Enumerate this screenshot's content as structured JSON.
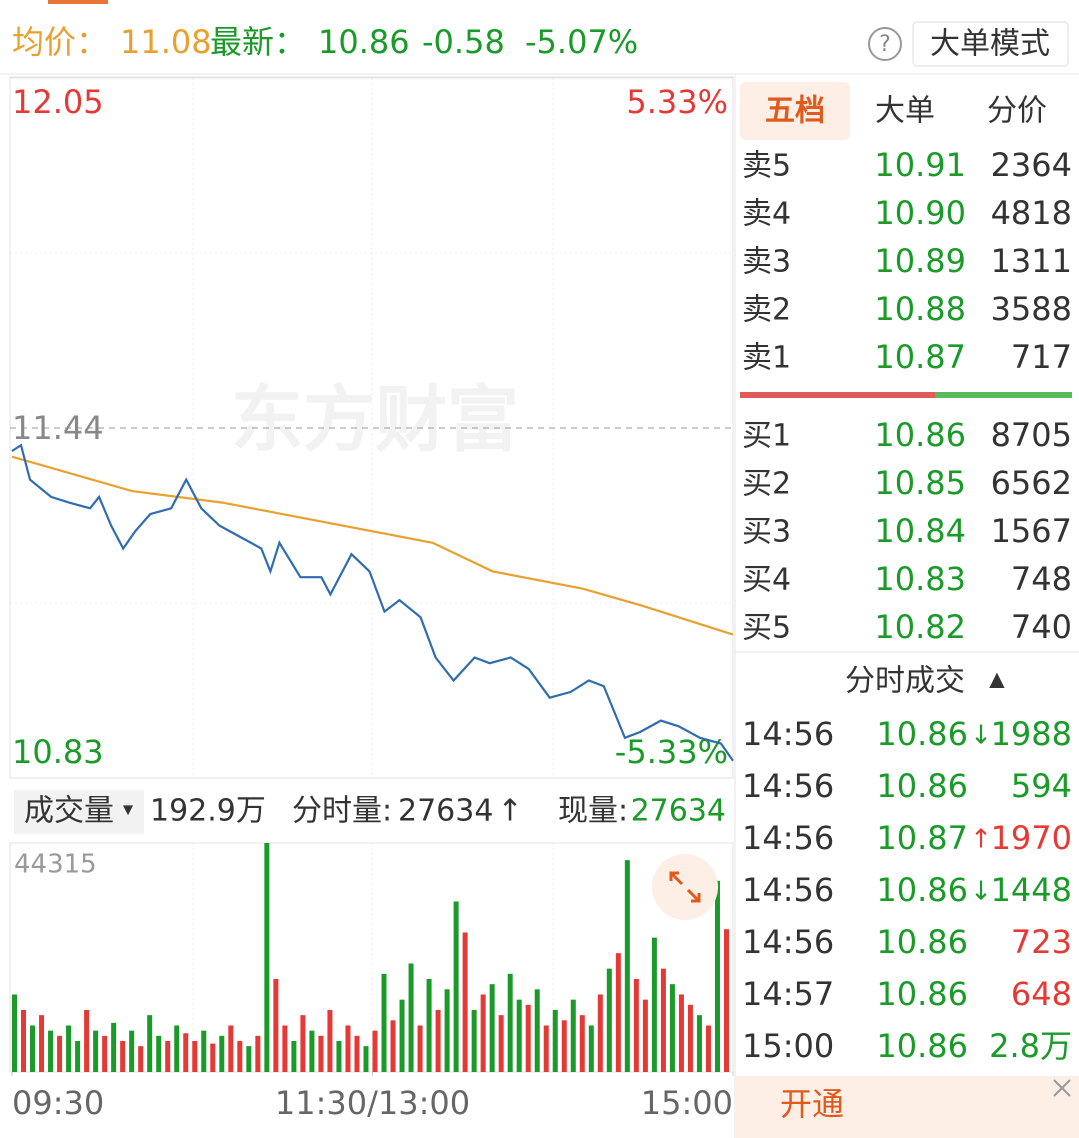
{
  "header": {
    "avg_label": "均价：",
    "avg": "11.08",
    "last_label": "最新：",
    "last": "10.86",
    "change": "-0.58",
    "change_pct": "-5.07%",
    "help": "?",
    "mode_button": "大单模式"
  },
  "tabs": [
    "五档",
    "大单",
    "分价"
  ],
  "order_book": {
    "sell": [
      [
        "卖5",
        "10.91",
        "2364"
      ],
      [
        "卖4",
        "10.90",
        "4818"
      ],
      [
        "卖3",
        "10.89",
        "1311"
      ],
      [
        "卖2",
        "10.88",
        "3588"
      ],
      [
        "卖1",
        "10.87",
        "717"
      ]
    ],
    "buy": [
      [
        "买1",
        "10.86",
        "8705"
      ],
      [
        "买2",
        "10.85",
        "6562"
      ],
      [
        "买3",
        "10.84",
        "1567"
      ],
      [
        "买4",
        "10.83",
        "748"
      ],
      [
        "买5",
        "10.82",
        "740"
      ]
    ]
  },
  "trades_title": "分时成交",
  "trades_sort": "▲",
  "trades": [
    {
      "time": "14:56",
      "price": "10.86",
      "arrow": "↓",
      "volume": "1988",
      "color": "#1a9a28"
    },
    {
      "time": "14:56",
      "price": "10.86",
      "volume": "594",
      "color": "#1a9a28"
    },
    {
      "time": "14:56",
      "price": "10.87",
      "arrow": "↑",
      "volume": "1970",
      "color": "#e53935"
    },
    {
      "time": "14:56",
      "price": "10.86",
      "arrow": "↓",
      "volume": "1448",
      "color": "#1a9a28"
    },
    {
      "time": "14:56",
      "price": "10.86",
      "volume": "723",
      "color": "#e53935"
    },
    {
      "time": "14:57",
      "price": "10.86",
      "volume": "648",
      "color": "#e53935"
    },
    {
      "time": "15:00",
      "price": "10.86",
      "volume": "2.8万",
      "color": "#1a9a28"
    }
  ],
  "volume_header": {
    "label": "成交量",
    "dropdown": "▾",
    "total": "192.9万",
    "minute_label": "分时量:",
    "minute": "27634",
    "minute_arrow": "↑",
    "current_label": "现量:",
    "current": "27634"
  },
  "bottom_button": "开通",
  "chart_data": [
    {
      "type": "line",
      "watermark": "东方财富",
      "xlim": [
        0,
        240
      ],
      "xticks": [
        {
          "value": 0,
          "label": "09:30"
        },
        {
          "value": 120,
          "label": "11:30/13:00"
        },
        {
          "value": 240,
          "label": "15:00"
        }
      ],
      "ylim": [
        10.83,
        12.05
      ],
      "yticks": [
        10.83,
        11.44,
        12.05
      ],
      "ytick_colors": [
        "#1a9a28",
        "#888888",
        "#e53935"
      ],
      "y2lim": [
        -5.33,
        5.33
      ],
      "y2ticks": [
        {
          "value": -5.33,
          "label": "-5.33%"
        },
        {
          "value": 5.33,
          "label": "5.33%"
        }
      ],
      "y2tick_colors": [
        "#1a9a28",
        "#e53935"
      ],
      "series": [
        {
          "color": "#2f6db0",
          "x": [
            0,
            3,
            6,
            13,
            19,
            26,
            29,
            33,
            37,
            41,
            46,
            53,
            58,
            63,
            69,
            76,
            83,
            86,
            89,
            96,
            103,
            106,
            113,
            119,
            124,
            129,
            136,
            141,
            147,
            154,
            159,
            166,
            172,
            179,
            186,
            192,
            197,
            204,
            209,
            216,
            222,
            229,
            236,
            240
          ],
          "values": [
            11.4,
            11.41,
            11.35,
            11.32,
            11.31,
            11.3,
            11.32,
            11.27,
            11.23,
            11.26,
            11.29,
            11.3,
            11.35,
            11.3,
            11.27,
            11.25,
            11.23,
            11.19,
            11.24,
            11.18,
            11.18,
            11.15,
            11.22,
            11.19,
            11.12,
            11.14,
            11.11,
            11.04,
            11.0,
            11.04,
            11.03,
            11.04,
            11.02,
            10.97,
            10.98,
            11.0,
            10.99,
            10.9,
            10.91,
            10.93,
            10.92,
            10.9,
            10.89,
            10.86
          ]
        },
        {
          "color": "#e8a02f",
          "x": [
            0,
            40,
            70,
            100,
            140,
            160,
            190,
            210,
            240
          ],
          "values": [
            11.39,
            11.33,
            11.31,
            11.28,
            11.24,
            11.19,
            11.16,
            11.13,
            11.08
          ]
        }
      ]
    },
    {
      "type": "bar",
      "ylim": [
        0,
        44315
      ],
      "yticks": [
        44315
      ],
      "xlim": [
        0,
        240
      ],
      "colors": {
        "up": "#e53935",
        "down": "#1a9a28"
      },
      "x": [
        0,
        3,
        6,
        9,
        12,
        15,
        18,
        21,
        24,
        27,
        30,
        33,
        36,
        39,
        42,
        45,
        48,
        51,
        54,
        57,
        60,
        63,
        66,
        69,
        72,
        75,
        78,
        81,
        84,
        87,
        90,
        93,
        96,
        99,
        102,
        105,
        108,
        111,
        114,
        117,
        120,
        123,
        126,
        129,
        132,
        135,
        138,
        141,
        144,
        147,
        150,
        153,
        156,
        159,
        162,
        165,
        168,
        171,
        174,
        177,
        180,
        183,
        186,
        189,
        192,
        195,
        198,
        201,
        204,
        207,
        210,
        213,
        216,
        219,
        222,
        225,
        228,
        231,
        234,
        237
      ],
      "values": [
        15000,
        12000,
        9000,
        11000,
        8000,
        7000,
        9000,
        6000,
        12000,
        8000,
        7000,
        9500,
        6000,
        8000,
        5000,
        11000,
        7000,
        6000,
        9000,
        7500,
        6000,
        8000,
        5500,
        7000,
        9000,
        6000,
        5000,
        7000,
        44315,
        18000,
        9000,
        6000,
        11000,
        8000,
        7000,
        12000,
        6000,
        9000,
        7000,
        5000,
        8000,
        19000,
        10000,
        14000,
        21000,
        9000,
        18000,
        12000,
        16000,
        33000,
        27000,
        12000,
        15000,
        17000,
        11000,
        19000,
        14000,
        13000,
        16000,
        9000,
        12000,
        10000,
        14000,
        11000,
        9000,
        15000,
        20000,
        23000,
        41000,
        18000,
        14000,
        26000,
        20000,
        17000,
        15000,
        13000,
        11000,
        9000,
        37000,
        27634
      ],
      "directions": [
        "down",
        "up",
        "down",
        "up",
        "down",
        "up",
        "down",
        "down",
        "up",
        "down",
        "up",
        "down",
        "up",
        "down",
        "up",
        "down",
        "down",
        "up",
        "down",
        "up",
        "up",
        "down",
        "up",
        "down",
        "up",
        "up",
        "down",
        "up",
        "down",
        "up",
        "up",
        "down",
        "up",
        "down",
        "up",
        "up",
        "down",
        "up",
        "up",
        "down",
        "up",
        "down",
        "up",
        "down",
        "down",
        "up",
        "down",
        "up",
        "down",
        "down",
        "up",
        "down",
        "up",
        "down",
        "up",
        "down",
        "down",
        "up",
        "down",
        "up",
        "down",
        "up",
        "down",
        "up",
        "down",
        "up",
        "down",
        "up",
        "down",
        "up",
        "up",
        "down",
        "up",
        "down",
        "up",
        "up",
        "down",
        "up",
        "down",
        "up"
      ]
    }
  ]
}
